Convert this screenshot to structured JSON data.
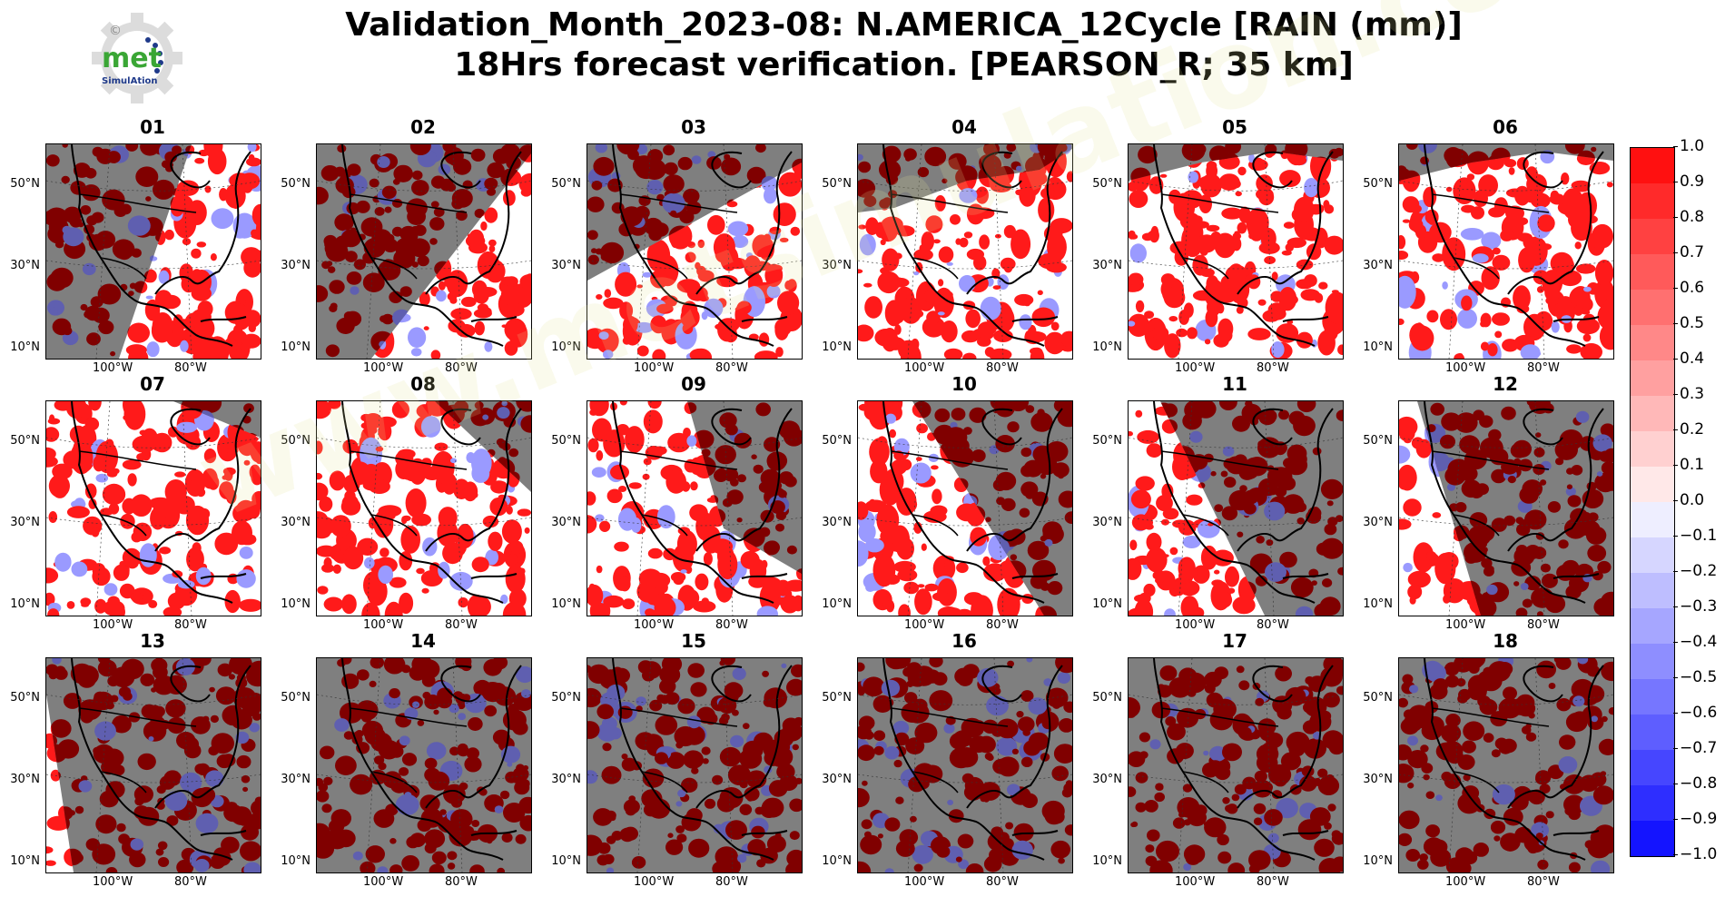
{
  "title": {
    "line1": "Validation_Month_2023-08: N.AMERICA_12Cycle [RAIN (mm)]",
    "line2": "18Hrs forecast verification.  [PEARSON_R; 35 km]"
  },
  "logo": {
    "text": "met",
    "subtext": "SimulAtion",
    "copyright": "©"
  },
  "watermark": "www.metsimulation.com",
  "lat_labels": [
    "50°N",
    "30°N",
    "10°N"
  ],
  "lon_labels": [
    "100°W",
    "80°W"
  ],
  "panels": [
    {
      "label": "01",
      "night_shade": "west-wedge"
    },
    {
      "label": "02",
      "night_shade": "west-wedge"
    },
    {
      "label": "03",
      "night_shade": "north-west"
    },
    {
      "label": "04",
      "night_shade": "north-edge"
    },
    {
      "label": "05",
      "night_shade": "top-edge"
    },
    {
      "label": "06",
      "night_shade": "top-edge"
    },
    {
      "label": "07",
      "night_shade": "north-east"
    },
    {
      "label": "08",
      "night_shade": "north-east"
    },
    {
      "label": "09",
      "night_shade": "east-wedge"
    },
    {
      "label": "10",
      "night_shade": "east-wedge"
    },
    {
      "label": "11",
      "night_shade": "east-large"
    },
    {
      "label": "12",
      "night_shade": "east-large"
    },
    {
      "label": "13",
      "night_shade": "nearly-full"
    },
    {
      "label": "14",
      "night_shade": "full"
    },
    {
      "label": "15",
      "night_shade": "full"
    },
    {
      "label": "16",
      "night_shade": "full"
    },
    {
      "label": "17",
      "night_shade": "full"
    },
    {
      "label": "18",
      "night_shade": "full"
    }
  ],
  "colorbar": {
    "ticks": [
      "1.0",
      "0.9",
      "0.8",
      "0.7",
      "0.6",
      "0.5",
      "0.4",
      "0.3",
      "0.2",
      "0.1",
      "0.0",
      "−0.1",
      "−0.2",
      "−0.3",
      "−0.4",
      "−0.5",
      "−0.6",
      "−0.7",
      "−0.8",
      "−0.9",
      "−1.0"
    ],
    "colors_top_to_bottom": [
      "#ff1010",
      "#ff2a2a",
      "#ff4141",
      "#ff5a5a",
      "#ff7070",
      "#ff8888",
      "#ffa0a0",
      "#ffb8b8",
      "#ffd0d0",
      "#ffe8e8",
      "#eeeeff",
      "#d6d6ff",
      "#bebeff",
      "#a6a6ff",
      "#8e8eff",
      "#7676ff",
      "#5e5eff",
      "#4646ff",
      "#2e2eff",
      "#1414ff"
    ],
    "colors": {
      "positive": "#ff0000",
      "negative": "#0000ff",
      "night": "#7f7f7f",
      "night_rain": "#7f0000"
    }
  }
}
